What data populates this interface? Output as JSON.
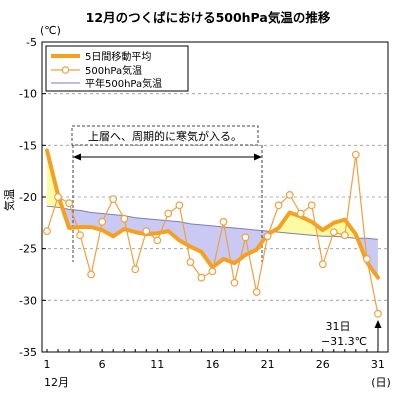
{
  "chart_data": {
    "type": "line",
    "title": "12月のつくばにおける500hPa気温の推移",
    "ylabel": "気温",
    "yunit": "(℃)",
    "xunit": "(日)",
    "xmonth": "12月",
    "ylim": [
      -35,
      -5
    ],
    "yticks": [
      -5,
      -10,
      -15,
      -20,
      -25,
      -30,
      -35
    ],
    "xticks": [
      1,
      6,
      11,
      16,
      21,
      26,
      31
    ],
    "grid": "horizontal",
    "legend": "top-left",
    "x": [
      1,
      2,
      3,
      4,
      5,
      6,
      7,
      8,
      9,
      10,
      11,
      12,
      13,
      14,
      15,
      16,
      17,
      18,
      19,
      20,
      21,
      22,
      23,
      24,
      25,
      26,
      27,
      28,
      29,
      30,
      31
    ],
    "series": [
      {
        "name": "5日間移動平均",
        "color": "#f6a11e",
        "values": [
          -15.5,
          -19.8,
          -23.0,
          -22.9,
          -22.9,
          -23.2,
          -23.8,
          -23.1,
          -23.4,
          -23.6,
          -23.5,
          -23.3,
          -24.2,
          -24.8,
          -25.3,
          -26.8,
          -26.0,
          -26.4,
          -25.6,
          -25.1,
          -23.6,
          -23.0,
          -21.5,
          -21.9,
          -22.4,
          -23.2,
          -22.5,
          -22.2,
          -23.6,
          -26.3,
          -27.8
        ]
      },
      {
        "name": "500hPa気温",
        "color": "#f0a040",
        "values": [
          -23.3,
          -20.0,
          -20.6,
          -23.7,
          -27.5,
          -22.4,
          -20.2,
          -22.1,
          -27.0,
          -23.3,
          -24.2,
          -21.6,
          -20.8,
          -26.3,
          -27.8,
          -27.2,
          -22.4,
          -28.3,
          -23.9,
          -29.2,
          -23.8,
          -20.8,
          -19.8,
          -21.6,
          -20.8,
          -26.5,
          -23.4,
          -23.7,
          -15.9,
          -26.0,
          -31.3
        ]
      },
      {
        "name": "平年500hPa気温",
        "color": "#7d7db8",
        "values": [
          -20.9,
          -21.0,
          -21.2,
          -21.3,
          -21.5,
          -21.6,
          -21.7,
          -21.8,
          -22.0,
          -22.1,
          -22.2,
          -22.3,
          -22.4,
          -22.6,
          -22.7,
          -22.8,
          -22.9,
          -23.0,
          -23.1,
          -23.2,
          -23.3,
          -23.4,
          -23.5,
          -23.6,
          -23.7,
          -23.8,
          -23.8,
          -23.9,
          -24.0,
          -24.0,
          -24.1
        ]
      }
    ],
    "fill": {
      "below_normal": "#c9c9f4",
      "above_normal": "#fbfba6"
    },
    "annotations": {
      "cold_air": "上層へ、周期的に寒気が入る。",
      "min_day": "31日",
      "min_value": "−31.3℃"
    }
  }
}
